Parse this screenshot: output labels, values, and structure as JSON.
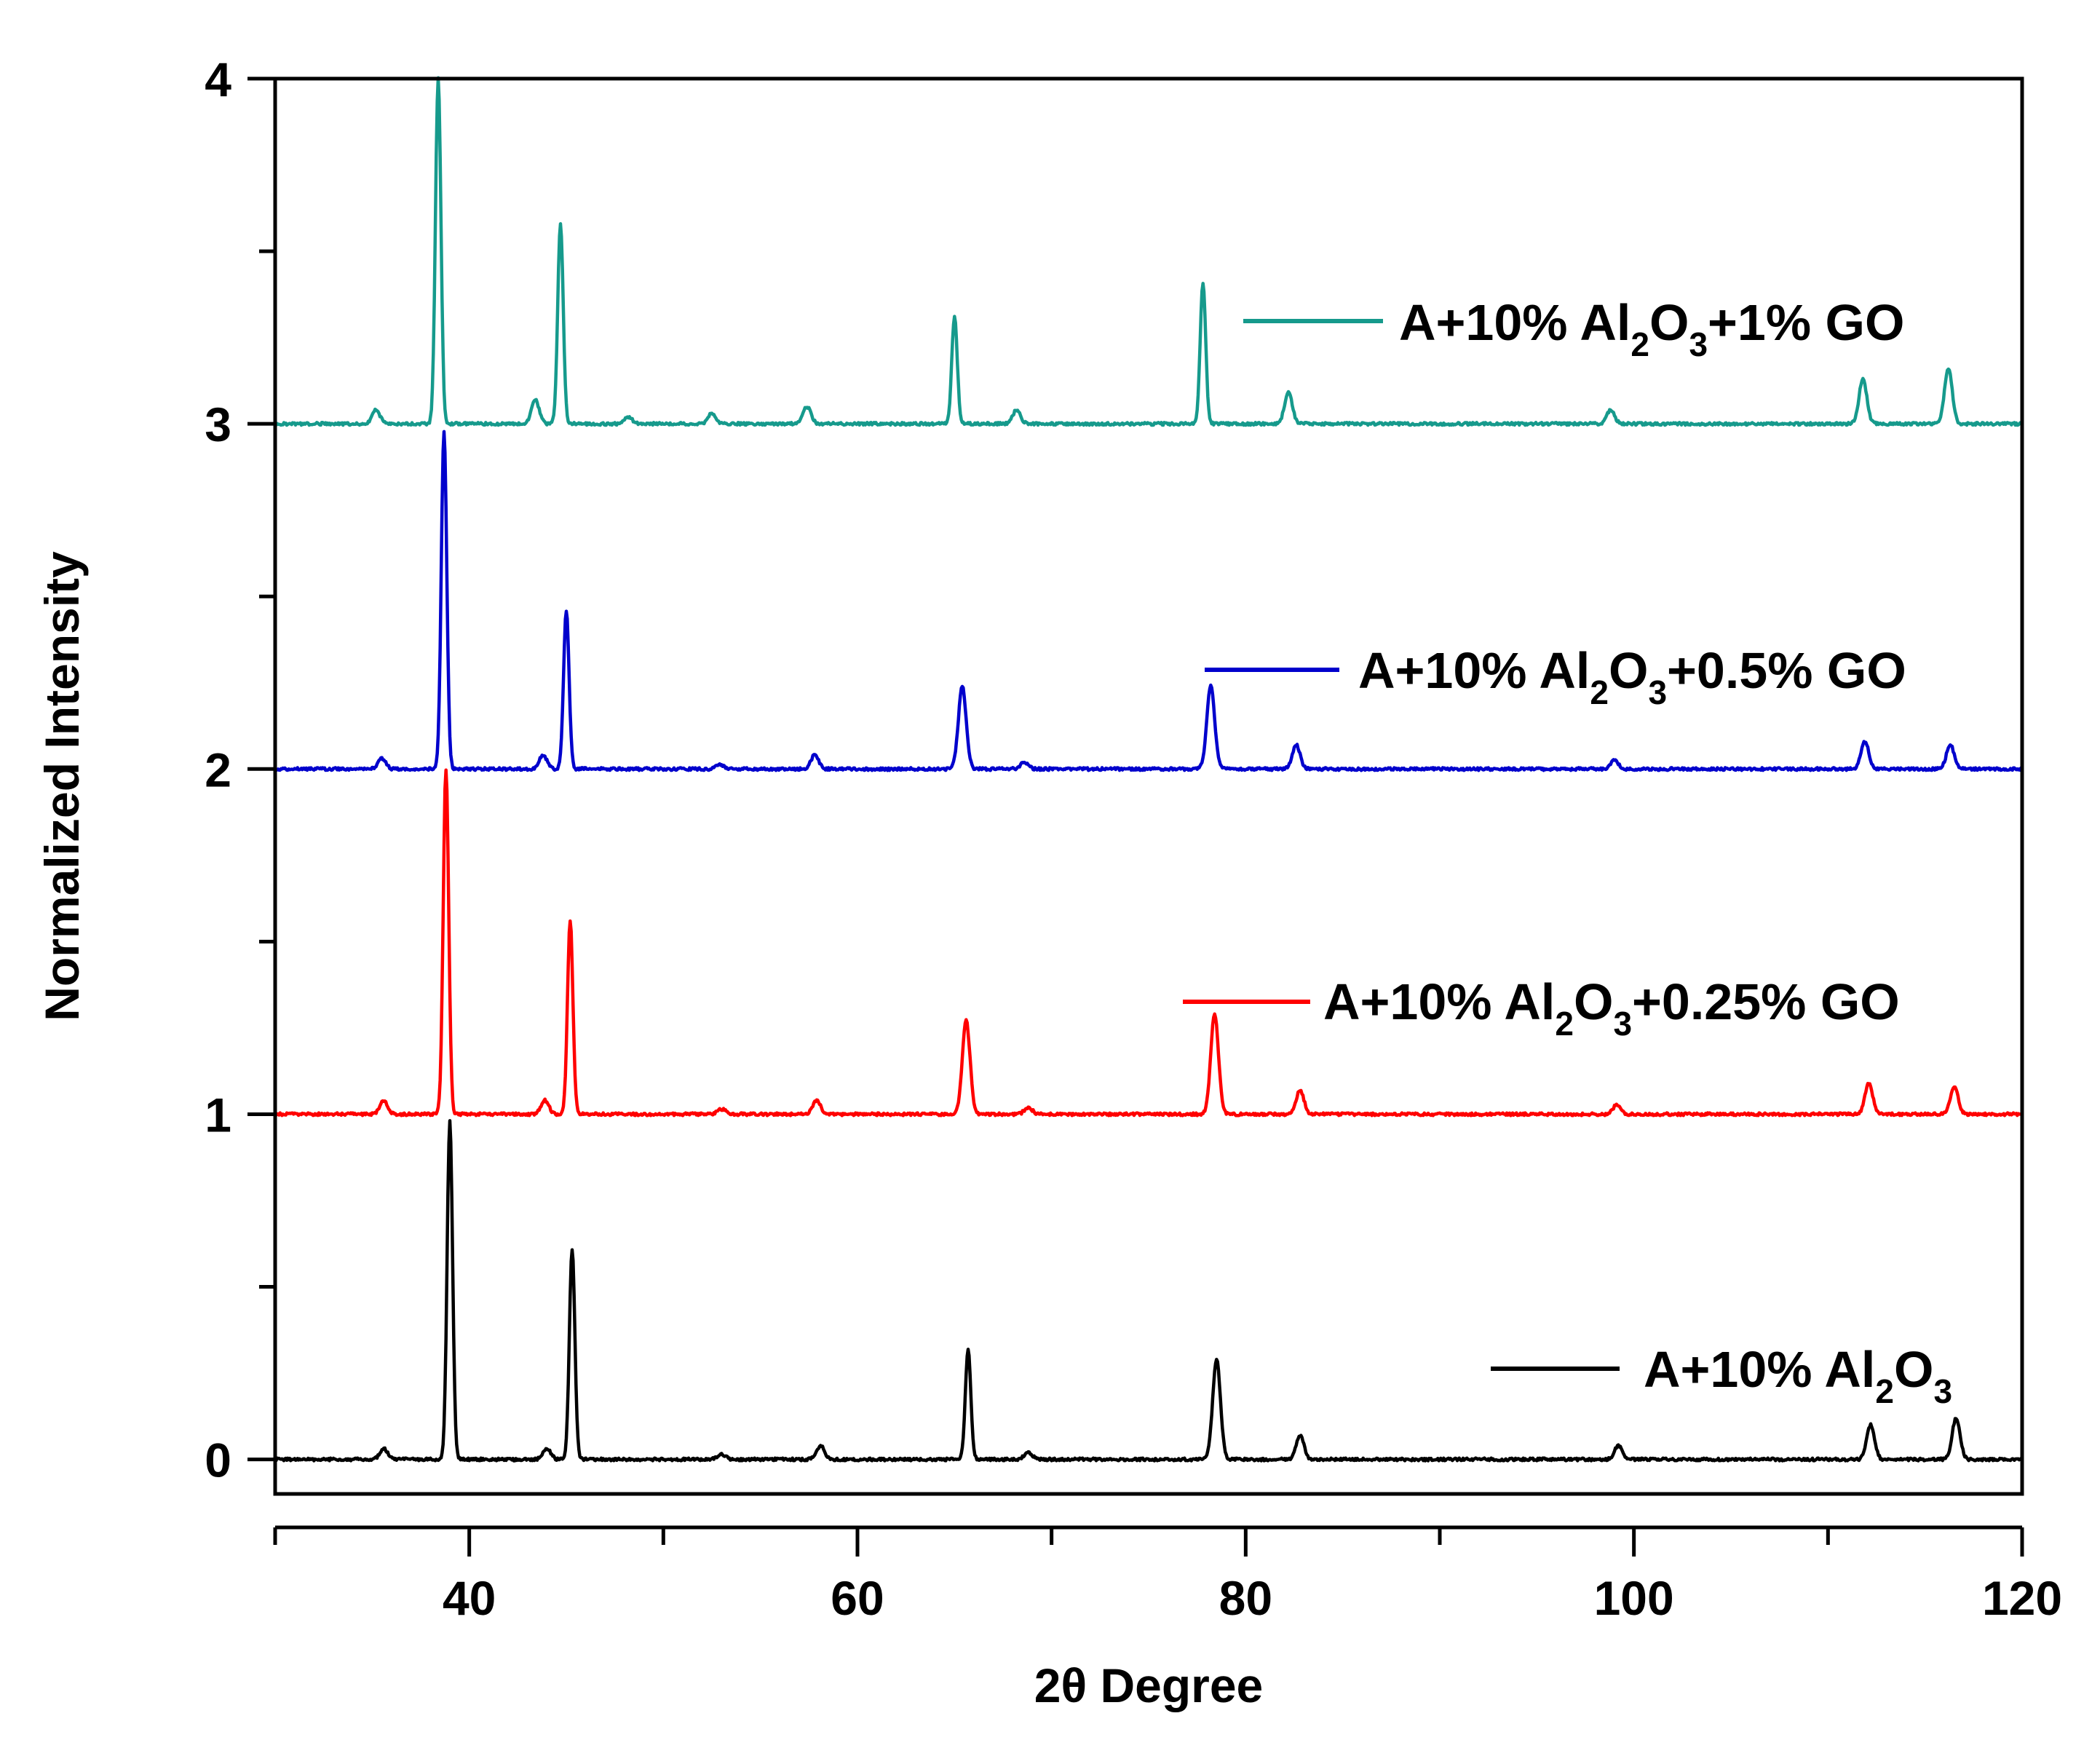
{
  "chart_data": {
    "type": "line",
    "title": "",
    "xlabel": "2θ Degree",
    "ylabel": "Normalized Intensity",
    "xlim": [
      30,
      120
    ],
    "ylim": [
      -0.1,
      4
    ],
    "xticks": [
      40,
      60,
      80,
      100,
      120
    ],
    "yticks": [
      0,
      1,
      2,
      3,
      4
    ],
    "x_tick_labels": [
      "40",
      "60",
      "80",
      "100",
      "120"
    ],
    "y_tick_labels": [
      "0",
      "1",
      "2",
      "3",
      "4"
    ],
    "grid": false,
    "legend_position": "inline-right",
    "series": [
      {
        "name": "A+10% Al2O3",
        "legend": {
          "prefix": "A+10% Al",
          "sub1": "2",
          "mid": "O",
          "sub2": "3",
          "suffix": ""
        },
        "color": "#000000",
        "baseline": 0,
        "peaks": [
          {
            "x": 35.6,
            "h": 0.03
          },
          {
            "x": 39.0,
            "h": 0.98
          },
          {
            "x": 44.0,
            "h": 0.03
          },
          {
            "x": 45.3,
            "h": 0.61
          },
          {
            "x": 53.0,
            "h": 0.015
          },
          {
            "x": 58.1,
            "h": 0.04
          },
          {
            "x": 65.7,
            "h": 0.32
          },
          {
            "x": 68.8,
            "h": 0.02
          },
          {
            "x": 78.5,
            "h": 0.29
          },
          {
            "x": 82.8,
            "h": 0.07
          },
          {
            "x": 99.2,
            "h": 0.04
          },
          {
            "x": 112.2,
            "h": 0.1
          },
          {
            "x": 116.6,
            "h": 0.12
          }
        ]
      },
      {
        "name": "A+10% Al2O3+0.25% GO",
        "legend": {
          "prefix": "A+10% Al",
          "sub1": "2",
          "mid": "O",
          "sub2": "3",
          "suffix": "+0.25% GO"
        },
        "color": "#ff0000",
        "baseline": 1,
        "peaks": [
          {
            "x": 35.6,
            "h": 0.04
          },
          {
            "x": 38.8,
            "h": 1.0
          },
          {
            "x": 43.9,
            "h": 0.04
          },
          {
            "x": 45.2,
            "h": 0.56
          },
          {
            "x": 53.0,
            "h": 0.015
          },
          {
            "x": 57.9,
            "h": 0.04
          },
          {
            "x": 65.6,
            "h": 0.27
          },
          {
            "x": 68.8,
            "h": 0.02
          },
          {
            "x": 78.4,
            "h": 0.29
          },
          {
            "x": 82.8,
            "h": 0.07
          },
          {
            "x": 99.1,
            "h": 0.025
          },
          {
            "x": 112.1,
            "h": 0.09
          },
          {
            "x": 116.5,
            "h": 0.08
          }
        ]
      },
      {
        "name": "A+10% Al2O3+0.5% GO",
        "legend": {
          "prefix": "A+10% Al",
          "sub1": "2",
          "mid": "O",
          "sub2": "3",
          "suffix": "+0.5% GO"
        },
        "color": "#0000cc",
        "baseline": 2,
        "peaks": [
          {
            "x": 35.5,
            "h": 0.03
          },
          {
            "x": 38.7,
            "h": 0.98
          },
          {
            "x": 43.8,
            "h": 0.04
          },
          {
            "x": 45.0,
            "h": 0.46
          },
          {
            "x": 52.9,
            "h": 0.015
          },
          {
            "x": 57.8,
            "h": 0.04
          },
          {
            "x": 65.4,
            "h": 0.24
          },
          {
            "x": 68.6,
            "h": 0.02
          },
          {
            "x": 78.2,
            "h": 0.24
          },
          {
            "x": 82.6,
            "h": 0.07
          },
          {
            "x": 99.0,
            "h": 0.025
          },
          {
            "x": 111.9,
            "h": 0.08
          },
          {
            "x": 116.3,
            "h": 0.07
          }
        ]
      },
      {
        "name": "A+10% Al2O3+1% GO",
        "legend": {
          "prefix": "A+10% Al",
          "sub1": "2",
          "mid": "O",
          "sub2": "3",
          "suffix": "+1% GO"
        },
        "color": "#169a8c",
        "baseline": 3,
        "peaks": [
          {
            "x": 35.2,
            "h": 0.04
          },
          {
            "x": 38.4,
            "h": 1.0
          },
          {
            "x": 43.4,
            "h": 0.07
          },
          {
            "x": 44.7,
            "h": 0.58
          },
          {
            "x": 48.2,
            "h": 0.02
          },
          {
            "x": 52.5,
            "h": 0.03
          },
          {
            "x": 57.4,
            "h": 0.05
          },
          {
            "x": 65.0,
            "h": 0.31
          },
          {
            "x": 68.2,
            "h": 0.04
          },
          {
            "x": 77.8,
            "h": 0.41
          },
          {
            "x": 82.2,
            "h": 0.09
          },
          {
            "x": 98.8,
            "h": 0.04
          },
          {
            "x": 111.8,
            "h": 0.13
          },
          {
            "x": 116.2,
            "h": 0.16
          }
        ]
      }
    ]
  }
}
